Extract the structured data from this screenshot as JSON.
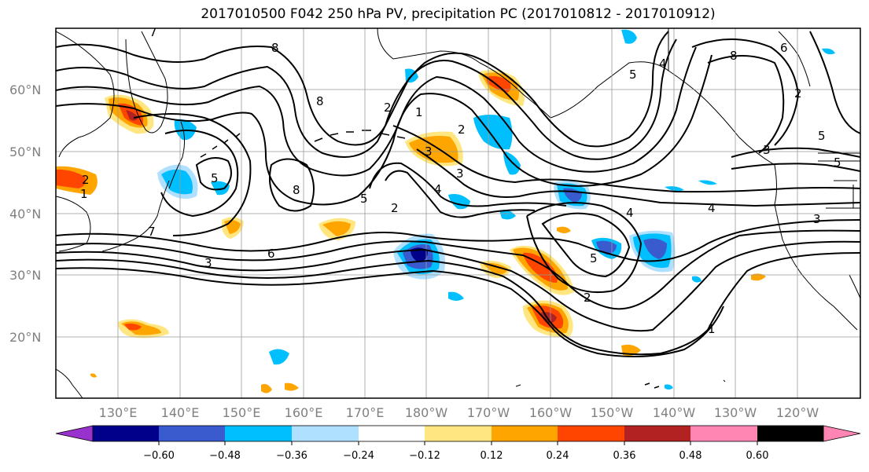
{
  "title": "2017010500 F042 250 hPa PV, precipitation PC (2017010812 - 2017010912)",
  "lat_labels": [
    "60°N",
    "50°N",
    "40°N",
    "30°N",
    "20°N"
  ],
  "lon_labels": [
    "130°E",
    "140°E",
    "150°E",
    "160°E",
    "170°E",
    "180°W",
    "170°W",
    "160°W",
    "150°W",
    "140°W",
    "130°W",
    "120°W"
  ],
  "colorbar": {
    "ticks": [
      "−0.60",
      "−0.48",
      "−0.36",
      "−0.24",
      "−0.12",
      "0.12",
      "0.24",
      "0.36",
      "0.48",
      "0.60"
    ],
    "colors": [
      "#9932cc",
      "#00008b",
      "#3a5bcd",
      "#00bfff",
      "#b0e0ff",
      "#ffffff",
      "#ffe680",
      "#ffa500",
      "#ff4500",
      "#b22222",
      "#ff85b3"
    ]
  },
  "contour_labels": [
    "7",
    "8",
    "2",
    "1",
    "8",
    "2",
    "3",
    "4",
    "5",
    "2",
    "1",
    "6",
    "7",
    "8",
    "5",
    "5",
    "4",
    "3",
    "2",
    "4",
    "3",
    "5",
    "8",
    "5",
    "6",
    "3",
    "2",
    "5",
    "4",
    "3",
    "2",
    "1"
  ]
}
